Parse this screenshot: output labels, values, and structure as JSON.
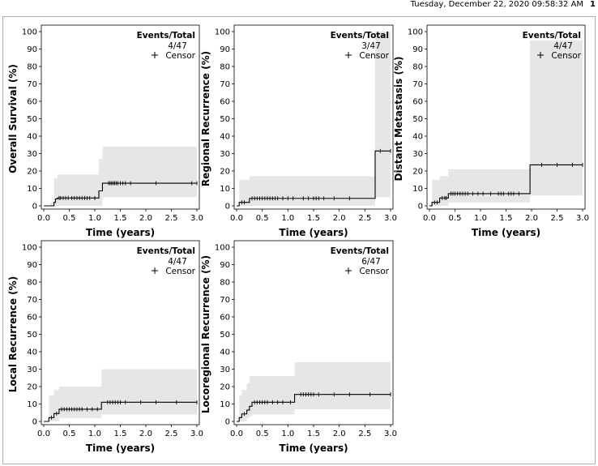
{
  "header": {
    "timestamp": "Tuesday, December 22, 2020 09:58:32 AM",
    "page": "1"
  },
  "colors": {
    "band": "#e6e6e6",
    "line": "#000000",
    "axis": "#000000",
    "frame": "#b0b0b0"
  },
  "chart_data": [
    {
      "type": "line",
      "ylabel": "Overall Survival (%)",
      "xlabel": "Time (years)",
      "xlim": [
        0,
        3
      ],
      "ylim": [
        0,
        100
      ],
      "xticks": [
        "0.0",
        "0.5",
        "1.0",
        "1.5",
        "2.0",
        "2.5",
        "3.0"
      ],
      "yticks": [
        "0",
        "10",
        "20",
        "30",
        "40",
        "50",
        "60",
        "70",
        "80",
        "90",
        "100"
      ],
      "legend": {
        "title": "Events/Total",
        "count": "4/47",
        "censor_label": "Censor",
        "position": "top-right"
      },
      "step": [
        [
          0,
          0
        ],
        [
          0.05,
          0
        ],
        [
          0.1,
          0
        ],
        [
          0.15,
          0
        ],
        [
          0.2,
          0
        ],
        [
          0.2,
          2
        ],
        [
          0.23,
          2
        ],
        [
          0.23,
          4
        ],
        [
          0.27,
          4
        ],
        [
          0.27,
          4.5
        ],
        [
          1.08,
          4.5
        ],
        [
          1.08,
          8.6
        ],
        [
          1.15,
          8.6
        ],
        [
          1.15,
          13
        ],
        [
          3.0,
          13
        ]
      ],
      "censors": [
        [
          0.3,
          4.5
        ],
        [
          0.33,
          4.5
        ],
        [
          0.38,
          4.5
        ],
        [
          0.43,
          4.5
        ],
        [
          0.48,
          4.5
        ],
        [
          0.55,
          4.5
        ],
        [
          0.6,
          4.5
        ],
        [
          0.65,
          4.5
        ],
        [
          0.7,
          4.5
        ],
        [
          0.75,
          4.5
        ],
        [
          0.8,
          4.5
        ],
        [
          0.85,
          4.5
        ],
        [
          0.9,
          4.5
        ],
        [
          1.0,
          4.5
        ],
        [
          1.27,
          13
        ],
        [
          1.3,
          13
        ],
        [
          1.33,
          13
        ],
        [
          1.36,
          13
        ],
        [
          1.39,
          13
        ],
        [
          1.42,
          13
        ],
        [
          1.45,
          13
        ],
        [
          1.5,
          13
        ],
        [
          1.55,
          13
        ],
        [
          1.6,
          13
        ],
        [
          1.7,
          13
        ],
        [
          2.2,
          13
        ],
        [
          2.9,
          13
        ],
        [
          3.0,
          13
        ]
      ],
      "band": [
        [
          0.13,
          0,
          2
        ],
        [
          0.2,
          0,
          16
        ],
        [
          0.27,
          0,
          18
        ],
        [
          1.08,
          0,
          27
        ],
        [
          1.15,
          5,
          34
        ],
        [
          3.0,
          5,
          34
        ]
      ]
    },
    {
      "type": "line",
      "ylabel": "Regional Recurrence (%)",
      "xlabel": "Time (years)",
      "xlim": [
        0,
        3
      ],
      "ylim": [
        0,
        100
      ],
      "xticks": [
        "0.0",
        "0.5",
        "1.0",
        "1.5",
        "2.0",
        "2.5",
        "3.0"
      ],
      "yticks": [
        "0",
        "10",
        "20",
        "30",
        "40",
        "50",
        "60",
        "70",
        "80",
        "90",
        "100"
      ],
      "legend": {
        "title": "Events/Total",
        "count": "3/47",
        "censor_label": "Censor",
        "position": "top-right"
      },
      "step": [
        [
          0,
          0
        ],
        [
          0.05,
          0
        ],
        [
          0.05,
          2
        ],
        [
          0.25,
          2
        ],
        [
          0.25,
          4.3
        ],
        [
          2.7,
          4.3
        ],
        [
          2.7,
          31.5
        ],
        [
          3.0,
          31.5
        ]
      ],
      "censors": [
        [
          0.1,
          2
        ],
        [
          0.15,
          2
        ],
        [
          0.3,
          4.3
        ],
        [
          0.35,
          4.3
        ],
        [
          0.4,
          4.3
        ],
        [
          0.45,
          4.3
        ],
        [
          0.5,
          4.3
        ],
        [
          0.55,
          4.3
        ],
        [
          0.6,
          4.3
        ],
        [
          0.65,
          4.3
        ],
        [
          0.7,
          4.3
        ],
        [
          0.75,
          4.3
        ],
        [
          0.8,
          4.3
        ],
        [
          0.9,
          4.3
        ],
        [
          1.0,
          4.3
        ],
        [
          1.1,
          4.3
        ],
        [
          1.3,
          4.3
        ],
        [
          1.4,
          4.3
        ],
        [
          1.5,
          4.3
        ],
        [
          1.55,
          4.3
        ],
        [
          1.6,
          4.3
        ],
        [
          1.7,
          4.3
        ],
        [
          1.9,
          4.3
        ],
        [
          2.2,
          4.3
        ],
        [
          2.8,
          31.5
        ],
        [
          3.0,
          31.5
        ]
      ],
      "band": [
        [
          0.05,
          0,
          15
        ],
        [
          0.25,
          0,
          17
        ],
        [
          2.7,
          5,
          100
        ],
        [
          3.0,
          5,
          100
        ]
      ]
    },
    {
      "type": "line",
      "ylabel": "Distant Metastasis (%)",
      "xlabel": "Time (years)",
      "xlim": [
        0,
        3
      ],
      "ylim": [
        0,
        100
      ],
      "xticks": [
        "0.0",
        "0.5",
        "1.0",
        "1.5",
        "2.0",
        "2.5",
        "3.0"
      ],
      "yticks": [
        "0",
        "10",
        "20",
        "30",
        "40",
        "50",
        "60",
        "70",
        "80",
        "90",
        "100"
      ],
      "legend": {
        "title": "Events/Total",
        "count": "4/47",
        "censor_label": "Censor",
        "position": "top-right"
      },
      "step": [
        [
          0,
          0
        ],
        [
          0.05,
          0
        ],
        [
          0.05,
          2
        ],
        [
          0.2,
          2
        ],
        [
          0.2,
          4.5
        ],
        [
          0.37,
          4.5
        ],
        [
          0.37,
          7
        ],
        [
          1.97,
          7
        ],
        [
          1.97,
          23.5
        ],
        [
          3.0,
          23.5
        ]
      ],
      "censors": [
        [
          0.1,
          2
        ],
        [
          0.15,
          2
        ],
        [
          0.25,
          4.5
        ],
        [
          0.3,
          4.5
        ],
        [
          0.33,
          4.5
        ],
        [
          0.42,
          7
        ],
        [
          0.46,
          7
        ],
        [
          0.5,
          7
        ],
        [
          0.55,
          7
        ],
        [
          0.6,
          7
        ],
        [
          0.65,
          7
        ],
        [
          0.7,
          7
        ],
        [
          0.75,
          7
        ],
        [
          0.85,
          7
        ],
        [
          0.95,
          7
        ],
        [
          1.05,
          7
        ],
        [
          1.2,
          7
        ],
        [
          1.35,
          7
        ],
        [
          1.4,
          7
        ],
        [
          1.45,
          7
        ],
        [
          1.55,
          7
        ],
        [
          1.6,
          7
        ],
        [
          1.65,
          7
        ],
        [
          1.75,
          7
        ],
        [
          2.2,
          23.5
        ],
        [
          2.5,
          23.5
        ],
        [
          2.8,
          23.5
        ],
        [
          3.0,
          23.5
        ]
      ],
      "band": [
        [
          0.05,
          0,
          15
        ],
        [
          0.2,
          0,
          17
        ],
        [
          0.37,
          2,
          21
        ],
        [
          1.97,
          6,
          95
        ],
        [
          3.0,
          6,
          95
        ]
      ]
    },
    {
      "type": "line",
      "ylabel": "Local Recurrence (%)",
      "xlabel": "Time (years)",
      "xlim": [
        0,
        3
      ],
      "ylim": [
        0,
        100
      ],
      "xticks": [
        "0.0",
        "0.5",
        "1.0",
        "1.5",
        "2.0",
        "2.5",
        "3.0"
      ],
      "yticks": [
        "0",
        "10",
        "20",
        "30",
        "40",
        "50",
        "60",
        "70",
        "80",
        "90",
        "100"
      ],
      "legend": {
        "title": "Events/Total",
        "count": "4/47",
        "censor_label": "Censor",
        "position": "top-right"
      },
      "step": [
        [
          0,
          0
        ],
        [
          0.1,
          0
        ],
        [
          0.1,
          2.2
        ],
        [
          0.2,
          2.2
        ],
        [
          0.2,
          4.5
        ],
        [
          0.3,
          4.5
        ],
        [
          0.3,
          7
        ],
        [
          1.13,
          7
        ],
        [
          1.13,
          11
        ],
        [
          3.0,
          11
        ]
      ],
      "censors": [
        [
          0.15,
          2.2
        ],
        [
          0.25,
          4.5
        ],
        [
          0.35,
          7
        ],
        [
          0.4,
          7
        ],
        [
          0.45,
          7
        ],
        [
          0.5,
          7
        ],
        [
          0.55,
          7
        ],
        [
          0.6,
          7
        ],
        [
          0.65,
          7
        ],
        [
          0.7,
          7
        ],
        [
          0.75,
          7
        ],
        [
          0.85,
          7
        ],
        [
          0.95,
          7
        ],
        [
          1.05,
          7
        ],
        [
          1.25,
          11
        ],
        [
          1.3,
          11
        ],
        [
          1.35,
          11
        ],
        [
          1.4,
          11
        ],
        [
          1.45,
          11
        ],
        [
          1.5,
          11
        ],
        [
          1.6,
          11
        ],
        [
          1.9,
          11
        ],
        [
          2.2,
          11
        ],
        [
          2.6,
          11
        ],
        [
          3.0,
          11
        ]
      ],
      "band": [
        [
          0.1,
          0,
          15
        ],
        [
          0.2,
          0,
          18
        ],
        [
          0.3,
          2,
          20
        ],
        [
          1.13,
          4,
          30
        ],
        [
          3.0,
          4,
          30
        ]
      ]
    },
    {
      "type": "line",
      "ylabel": "Locoregional Recurrence (%)",
      "xlabel": "Time (years)",
      "xlim": [
        0,
        3
      ],
      "ylim": [
        0,
        100
      ],
      "xticks": [
        "0.0",
        "0.5",
        "1.0",
        "1.5",
        "2.0",
        "2.5",
        "3.0"
      ],
      "yticks": [
        "0",
        "10",
        "20",
        "30",
        "40",
        "50",
        "60",
        "70",
        "80",
        "90",
        "100"
      ],
      "legend": {
        "title": "Events/Total",
        "count": "6/47",
        "censor_label": "Censor",
        "position": "top-right"
      },
      "step": [
        [
          0,
          0
        ],
        [
          0.05,
          0
        ],
        [
          0.05,
          2.2
        ],
        [
          0.1,
          2.2
        ],
        [
          0.1,
          4.3
        ],
        [
          0.2,
          4.3
        ],
        [
          0.2,
          6.5
        ],
        [
          0.25,
          6.5
        ],
        [
          0.25,
          8.7
        ],
        [
          0.3,
          8.7
        ],
        [
          0.3,
          11
        ],
        [
          1.13,
          11
        ],
        [
          1.13,
          15.5
        ],
        [
          3.0,
          15.5
        ]
      ],
      "censors": [
        [
          0.15,
          4.3
        ],
        [
          0.35,
          11
        ],
        [
          0.4,
          11
        ],
        [
          0.45,
          11
        ],
        [
          0.5,
          11
        ],
        [
          0.55,
          11
        ],
        [
          0.6,
          11
        ],
        [
          0.7,
          11
        ],
        [
          0.8,
          11
        ],
        [
          0.9,
          11
        ],
        [
          1.05,
          11
        ],
        [
          1.25,
          15.5
        ],
        [
          1.3,
          15.5
        ],
        [
          1.35,
          15.5
        ],
        [
          1.4,
          15.5
        ],
        [
          1.45,
          15.5
        ],
        [
          1.5,
          15.5
        ],
        [
          1.6,
          15.5
        ],
        [
          1.9,
          15.5
        ],
        [
          2.2,
          15.5
        ],
        [
          2.6,
          15.5
        ],
        [
          3.0,
          15.5
        ]
      ],
      "band": [
        [
          0.05,
          0,
          15
        ],
        [
          0.1,
          0,
          18
        ],
        [
          0.2,
          2,
          22
        ],
        [
          0.25,
          3,
          26
        ],
        [
          0.3,
          4,
          26
        ],
        [
          1.13,
          7,
          34
        ],
        [
          3.0,
          7,
          34
        ]
      ]
    }
  ]
}
